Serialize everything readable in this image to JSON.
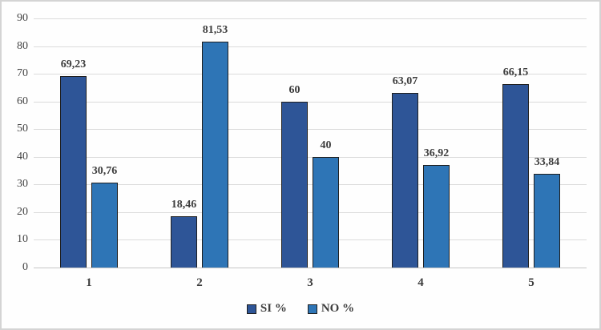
{
  "chart_data": {
    "type": "bar",
    "categories": [
      "1",
      "2",
      "3",
      "4",
      "5"
    ],
    "series": [
      {
        "name": "SI %",
        "color": "#2E5597",
        "values": [
          69.23,
          18.46,
          60,
          63.07,
          66.15
        ],
        "labels": [
          "69,23",
          "18,46",
          "60",
          "63,07",
          "66,15"
        ]
      },
      {
        "name": "NO %",
        "color": "#2E75B6",
        "values": [
          30.76,
          81.53,
          40,
          36.92,
          33.84
        ],
        "labels": [
          "30,76",
          "81,53",
          "40",
          "36,92",
          "33,84"
        ]
      }
    ],
    "xlabel": "",
    "ylabel": "",
    "ylim": [
      0,
      90
    ],
    "ytick_step": 10,
    "yticks": [
      "0",
      "10",
      "20",
      "30",
      "40",
      "50",
      "60",
      "70",
      "80",
      "90"
    ],
    "grid": true,
    "legend_position": "bottom"
  },
  "colors": {
    "si_bar": "#2E5597",
    "no_bar": "#2E75B6",
    "bar_outline": "#1f1f1f",
    "gridline": "#dbdbdb",
    "axis_baseline": "#c6c6c6",
    "text": "#3d3d3d",
    "frame_border": "#d4d4d4"
  }
}
